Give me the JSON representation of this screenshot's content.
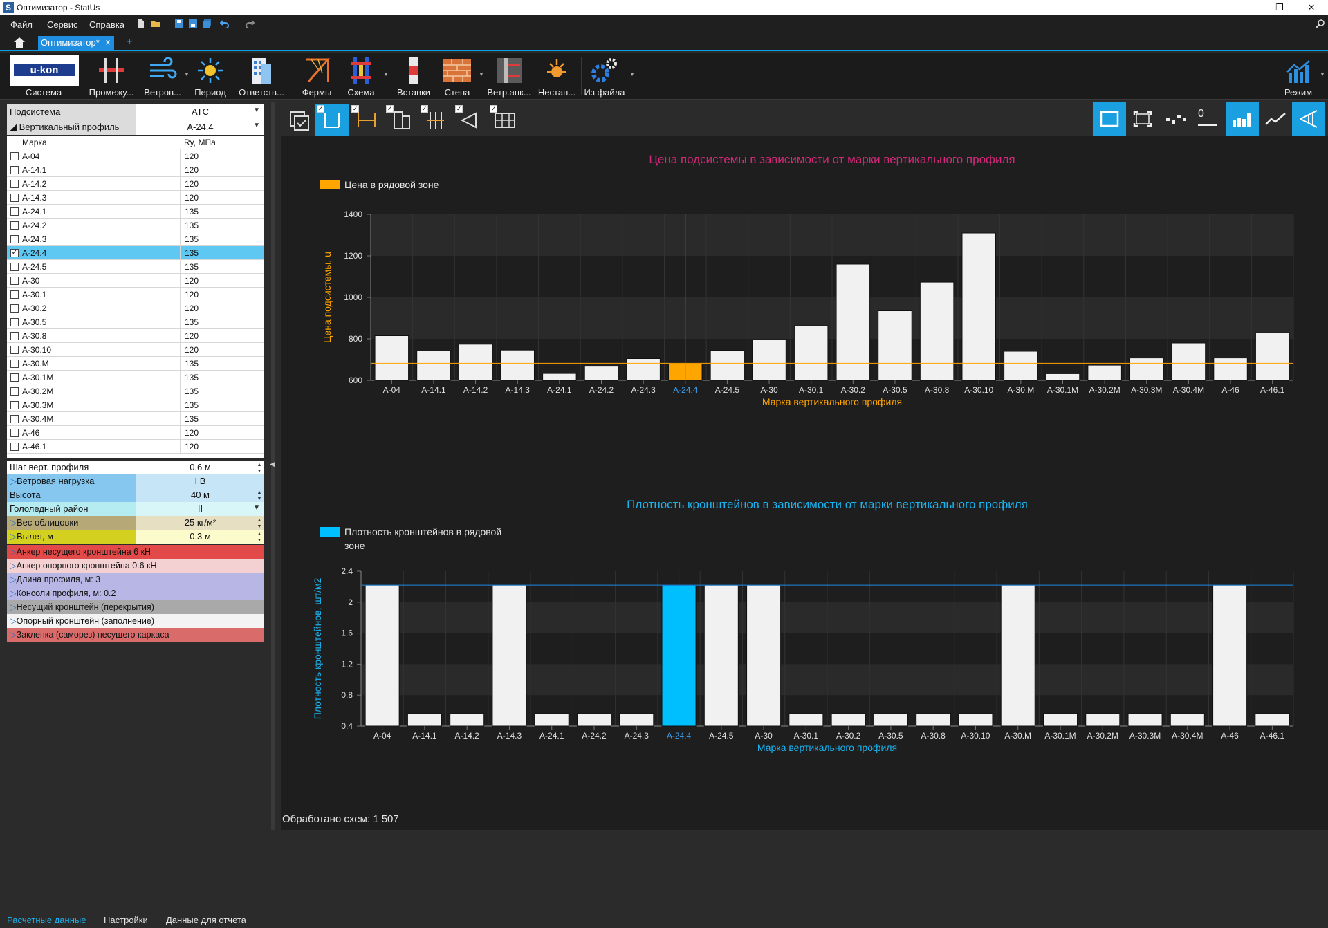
{
  "window": {
    "title": "Оптимизатор - StatUs",
    "app_icon": "S",
    "minimize": "—",
    "maximize": "❐",
    "close": "✕"
  },
  "menu": {
    "items": [
      "Файл",
      "Сервис",
      "Справка"
    ],
    "search_placeholder": "Поиск по справке"
  },
  "tabs": {
    "active": "Оптимизатор*",
    "add": "+"
  },
  "ribbon": {
    "logo_text": "u-kon",
    "buttons": [
      "Система",
      "Промежу...",
      "Ветров...",
      "Период",
      "Ответств...",
      "Фермы",
      "Схема",
      "Вставки",
      "Стена",
      "Ветр.анк...",
      "Нестан...",
      "Из файла"
    ],
    "mode_label": "Режим"
  },
  "left": {
    "subsystem": {
      "label": "Подсистема",
      "value": "АТС"
    },
    "profile": {
      "label": "Вертикальный профиль",
      "value": "А-24.4"
    },
    "grid": {
      "headers": [
        "Марка",
        "Ry, МПа"
      ],
      "rows": [
        {
          "m": "А-04",
          "r": "120",
          "c": false
        },
        {
          "m": "А-14.1",
          "r": "120",
          "c": false
        },
        {
          "m": "А-14.2",
          "r": "120",
          "c": false
        },
        {
          "m": "А-14.3",
          "r": "120",
          "c": false
        },
        {
          "m": "А-24.1",
          "r": "135",
          "c": false
        },
        {
          "m": "А-24.2",
          "r": "135",
          "c": false
        },
        {
          "m": "А-24.3",
          "r": "135",
          "c": false
        },
        {
          "m": "А-24.4",
          "r": "135",
          "c": true
        },
        {
          "m": "А-24.5",
          "r": "135",
          "c": false
        },
        {
          "m": "А-30",
          "r": "120",
          "c": false
        },
        {
          "m": "А-30.1",
          "r": "120",
          "c": false
        },
        {
          "m": "А-30.2",
          "r": "120",
          "c": false
        },
        {
          "m": "А-30.5",
          "r": "135",
          "c": false
        },
        {
          "m": "А-30.8",
          "r": "120",
          "c": false
        },
        {
          "m": "А-30.10",
          "r": "120",
          "c": false
        },
        {
          "m": "А-30.М",
          "r": "135",
          "c": false
        },
        {
          "m": "А-30.1М",
          "r": "135",
          "c": false
        },
        {
          "m": "А-30.2М",
          "r": "135",
          "c": false
        },
        {
          "m": "А-30.3М",
          "r": "135",
          "c": false
        },
        {
          "m": "А-30.4М",
          "r": "135",
          "c": false
        },
        {
          "m": "А-46",
          "r": "120",
          "c": false
        },
        {
          "m": "А-46.1",
          "r": "120",
          "c": false
        }
      ]
    },
    "params": [
      {
        "k": "Шаг верт. профиля",
        "v": "0.6 м",
        "color": "#ffffff",
        "vcolor": "#ffffff",
        "ctl": "spin",
        "exp": false
      },
      {
        "k": "Ветровая нагрузка",
        "v": "I В",
        "color": "#86c7ef",
        "vcolor": "#c6e6f8",
        "ctl": "",
        "exp": true
      },
      {
        "k": "Высота",
        "v": "40 м",
        "color": "#86c7ef",
        "vcolor": "#c6e6f8",
        "ctl": "spin",
        "exp": false
      },
      {
        "k": "Гололедный район",
        "v": "II",
        "color": "#b5ecf2",
        "vcolor": "#d8f5f8",
        "ctl": "dd",
        "exp": false
      },
      {
        "k": "Вес облицовки",
        "v": "25 кг/м²",
        "color": "#b6a877",
        "vcolor": "#e6dfc2",
        "ctl": "spin",
        "exp": true
      },
      {
        "k": "Вылет, м",
        "v": "0.3 м",
        "color": "#d4d020",
        "vcolor": "#fbfbcc",
        "ctl": "spin",
        "exp": true
      }
    ],
    "expanders": [
      {
        "t": "Анкер несущего кронштейна 6 кН",
        "color": "#e24a4a"
      },
      {
        "t": "Анкер опорного кронштейна 0.6 кН",
        "color": "#f3d1d3"
      },
      {
        "t": "Длина профиля, м: 3",
        "color": "#b7b6e4"
      },
      {
        "t": "Консоли профиля, м: 0.2",
        "color": "#b7b6e4"
      },
      {
        "t": "Несущий кронштейн (перекрытия)",
        "color": "#a9a9a9"
      },
      {
        "t": "Опорный кронштейн (заполнение)",
        "color": "#f3f3f3"
      },
      {
        "t": "Заклепка (саморез) несущего каркаса",
        "color": "#d96b6b"
      }
    ],
    "bottom_tabs": [
      "Расчетные данные",
      "Настройки",
      "Данные для отчета"
    ]
  },
  "right": {
    "zero_label": "0",
    "status": "Обработано схем: 1 507"
  },
  "chart_data": [
    {
      "type": "bar",
      "title": "Цена подсистемы в зависимости от марки вертикального профиля",
      "legend": "Цена в рядовой зоне",
      "xlabel": "Марка вертикального профиля",
      "ylabel": "Цена подсистемы, u",
      "categories": [
        "А-04",
        "А-14.1",
        "А-14.2",
        "А-14.3",
        "А-24.1",
        "А-24.2",
        "А-24.3",
        "А-24.4",
        "А-24.5",
        "А-30",
        "А-30.1",
        "А-30.2",
        "А-30.5",
        "А-30.8",
        "А-30.10",
        "А-30.М",
        "А-30.1М",
        "А-30.2М",
        "А-30.3М",
        "А-30.4М",
        "А-46",
        "А-46.1"
      ],
      "values": [
        815,
        742,
        774,
        746,
        633,
        668,
        705,
        682,
        745,
        795,
        863,
        1160,
        935,
        1073,
        1310,
        740,
        632,
        673,
        708,
        780,
        708,
        829
      ],
      "ylim": [
        600,
        1400
      ],
      "yticks": [
        600,
        800,
        1000,
        1200,
        1400
      ],
      "selected": "А-24.4",
      "reference_line": 682,
      "highlight_color": "#ffa500",
      "title_color": "#d4287a",
      "ylabel_color": "#ffa500",
      "grid": true
    },
    {
      "type": "bar",
      "title": "Плотность кронштейнов в зависимости от марки вертикального профиля",
      "legend": "Плотность кронштейнов в рядовой зоне",
      "xlabel": "Марка вертикального профиля",
      "ylabel": "Плотность кронштейнов, шт/м2",
      "categories": [
        "А-04",
        "А-14.1",
        "А-14.2",
        "А-14.3",
        "А-24.1",
        "А-24.2",
        "А-24.3",
        "А-24.4",
        "А-24.5",
        "А-30",
        "А-30.1",
        "А-30.2",
        "А-30.5",
        "А-30.8",
        "А-30.10",
        "А-30.М",
        "А-30.1М",
        "А-30.2М",
        "А-30.3М",
        "А-30.4М",
        "А-46",
        "А-46.1"
      ],
      "values": [
        2.22,
        0.56,
        0.56,
        2.22,
        0.56,
        0.56,
        0.56,
        2.22,
        2.22,
        2.22,
        0.56,
        0.56,
        0.56,
        0.56,
        0.56,
        2.22,
        0.56,
        0.56,
        0.56,
        0.56,
        2.22,
        0.56
      ],
      "ylim": [
        0.4,
        2.4
      ],
      "yticks": [
        0.4,
        0.8,
        1.2,
        1.6,
        2,
        2.4
      ],
      "selected": "А-24.4",
      "reference_line": 2.22,
      "highlight_color": "#00bfff",
      "title_color": "#1ab3f0",
      "ylabel_color": "#1ab3f0",
      "grid": true
    }
  ]
}
